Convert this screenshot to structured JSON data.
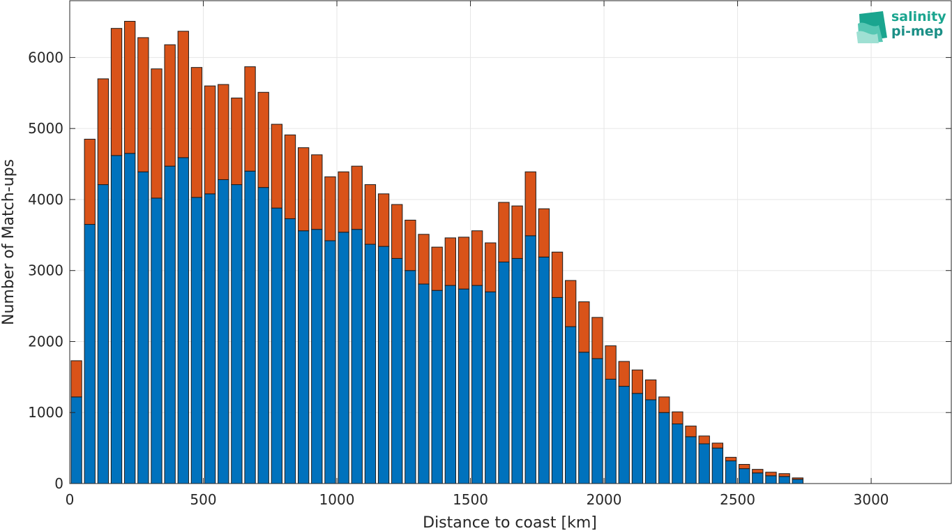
{
  "logo": {
    "line1": "salinity",
    "line2": "pi-mep"
  },
  "chart_data": {
    "type": "bar",
    "stacked": true,
    "xlabel": "Distance to coast [km]",
    "ylabel": "Number of Match-ups",
    "xlim": [
      0,
      3300
    ],
    "ylim": [
      0,
      6800
    ],
    "xticks": [
      0,
      500,
      1000,
      1500,
      2000,
      2500,
      3000
    ],
    "yticks": [
      0,
      1000,
      2000,
      3000,
      4000,
      5000,
      6000
    ],
    "grid": true,
    "bin_width": 50,
    "x": [
      25,
      75,
      125,
      175,
      225,
      275,
      325,
      375,
      425,
      475,
      525,
      575,
      625,
      675,
      725,
      775,
      825,
      875,
      925,
      975,
      1025,
      1075,
      1125,
      1175,
      1225,
      1275,
      1325,
      1375,
      1425,
      1475,
      1525,
      1575,
      1625,
      1675,
      1725,
      1775,
      1825,
      1875,
      1925,
      1975,
      2025,
      2075,
      2125,
      2175,
      2225,
      2275,
      2325,
      2375,
      2425,
      2475,
      2525,
      2575,
      2625,
      2675,
      2725
    ],
    "series": [
      {
        "color": "#0072bd",
        "values": [
          1220,
          3650,
          4210,
          4620,
          4650,
          4390,
          4020,
          4470,
          4590,
          4030,
          4080,
          4280,
          4210,
          4400,
          4170,
          3880,
          3730,
          3560,
          3580,
          3420,
          3540,
          3580,
          3370,
          3340,
          3170,
          3000,
          2810,
          2720,
          2790,
          2740,
          2790,
          2700,
          3120,
          3170,
          3490,
          3190,
          2620,
          2210,
          1850,
          1760,
          1470,
          1370,
          1270,
          1180,
          1000,
          840,
          660,
          560,
          500,
          320,
          210,
          150,
          110,
          100,
          60
        ]
      },
      {
        "color": "#d95319",
        "values": [
          510,
          1200,
          1490,
          1790,
          1860,
          1890,
          1820,
          1710,
          1780,
          1830,
          1520,
          1340,
          1220,
          1470,
          1340,
          1180,
          1180,
          1170,
          1050,
          900,
          850,
          890,
          840,
          740,
          760,
          710,
          700,
          610,
          670,
          730,
          770,
          690,
          840,
          740,
          900,
          680,
          640,
          650,
          710,
          580,
          470,
          350,
          330,
          280,
          220,
          170,
          150,
          110,
          70,
          50,
          60,
          50,
          50,
          40,
          20
        ]
      }
    ]
  }
}
